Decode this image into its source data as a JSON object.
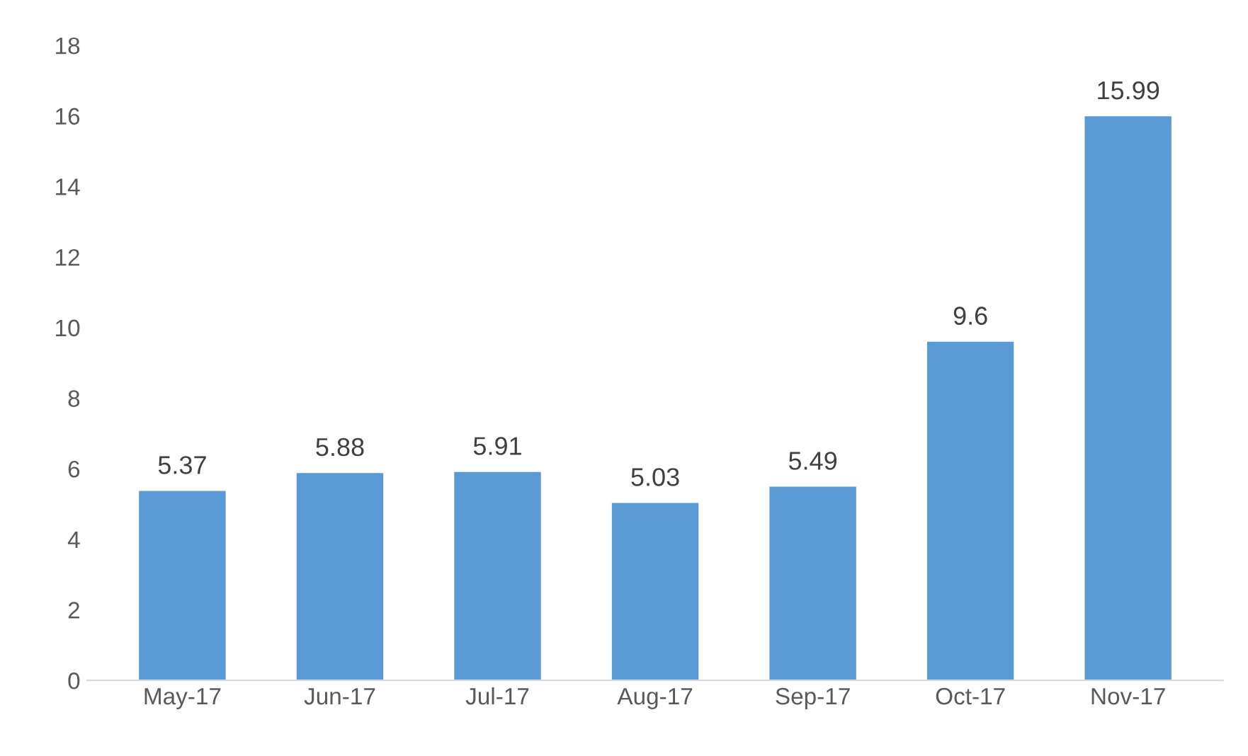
{
  "chart_data": {
    "type": "bar",
    "categories": [
      "May-17",
      "Jun-17",
      "Jul-17",
      "Aug-17",
      "Sep-17",
      "Oct-17",
      "Nov-17"
    ],
    "values": [
      5.37,
      5.88,
      5.91,
      5.03,
      5.49,
      9.6,
      15.99
    ],
    "color": "#5b9bd5",
    "ylim": [
      0,
      18
    ],
    "yticks": [
      0,
      2,
      4,
      6,
      8,
      10,
      12,
      14,
      16,
      18
    ],
    "data_labels": true,
    "grid": false,
    "legend": false
  }
}
